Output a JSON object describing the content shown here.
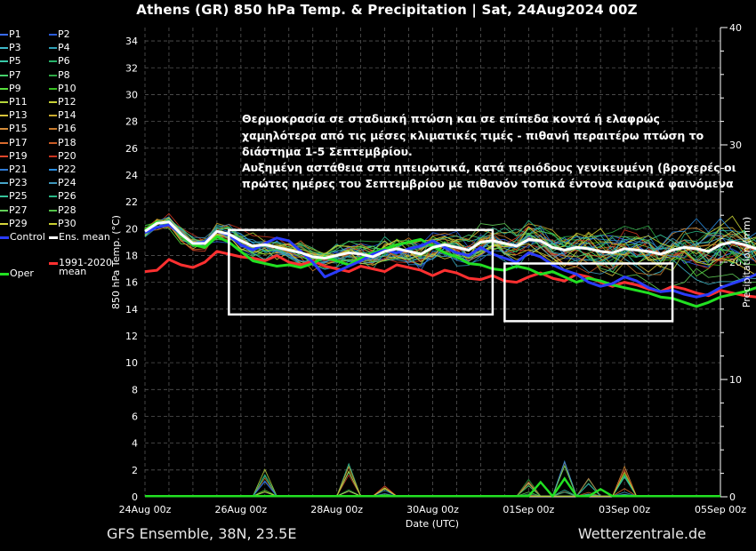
{
  "title": "Athens  (GR)  850 hPa Temp. & Precipitation | Sat, 24Aug2024 00Z",
  "footer": {
    "left": "GFS Ensemble, 38N, 23.5E",
    "right": "Wetterzentrale.de"
  },
  "legend": {
    "members": [
      "P1",
      "P2",
      "P3",
      "P4",
      "P5",
      "P6",
      "P7",
      "P8",
      "P9",
      "P10",
      "P11",
      "P12",
      "P13",
      "P14",
      "P15",
      "P16",
      "P17",
      "P18",
      "P19",
      "P20",
      "P21",
      "P22",
      "P23",
      "P24",
      "P25",
      "P26",
      "P27",
      "P28",
      "P29",
      "P30"
    ],
    "member_colors": [
      "#3a6cff",
      "#2a5bd8",
      "#3fb9c9",
      "#2fa0b6",
      "#38c9a8",
      "#27b36a",
      "#46d36b",
      "#2ea845",
      "#58e03c",
      "#37c021",
      "#b4d63b",
      "#c8d236",
      "#d9c43a",
      "#c9aa2d",
      "#d58d3a",
      "#c87a2c",
      "#d96b2e",
      "#c85a25",
      "#e0472b",
      "#c93520",
      "#2f7bd6",
      "#2a8de0",
      "#48a6c9",
      "#3e96bb",
      "#36c49a",
      "#2ab886",
      "#62cf58",
      "#52c148",
      "#d8d63c",
      "#c9cf30"
    ],
    "control_label": "Control",
    "ens_mean_label": "Ens. mean",
    "oper_label": "Oper",
    "climate_label_1": "1991-2020",
    "climate_label_2": "mean",
    "colors": {
      "control": "#2a3cff",
      "ens_mean": "#ffffff",
      "oper": "#22e022",
      "climate": "#ff3030"
    }
  },
  "annotation": {
    "lines": [
      "Θερμοκρασία σε σταδιακή πτώση και σε επίπεδα κοντά ή ελαφρώς",
      "χαμηλότερα από τις μέσες κλιματικές τιμές - πιθανή περαιτέρω πτώση το",
      "διάστημα 1-5 Σεπτεμβρίου.",
      "Αυξημένη αστάθεια στα ηπειρωτικά, κατά περιόδους γενικευμένη (βροχερές οι",
      "πρώτες ημέρες του Σεπτεμβρίου με πιθανόν τοπικά έντονα καιρικά φαινόμενα"
    ]
  },
  "chart_data": {
    "type": "line",
    "title": "Athens  (GR)  850 hPa Temp. & Precipitation | Sat, 24Aug2024 00Z",
    "xlabel": "Date (UTC)",
    "ylabel": "850 hPa Temp. (°C)",
    "y2label": "Precipitation (mm)",
    "ylim": [
      0,
      35
    ],
    "y2lim": [
      0,
      40
    ],
    "xlim_hours": [
      0,
      288
    ],
    "x_tick_labels": [
      "24Aug 00z",
      "26Aug 00z",
      "28Aug 00z",
      "30Aug 00z",
      "01Sep 00z",
      "03Sep 00z",
      "05Sep 00z"
    ],
    "y_ticks": [
      0,
      2,
      4,
      6,
      8,
      10,
      12,
      14,
      16,
      18,
      20,
      22,
      24,
      26,
      28,
      30,
      32,
      34
    ],
    "y2_ticks": [
      0,
      10,
      20,
      30,
      40
    ],
    "grid": true,
    "legend_position": "left-outside",
    "step_hours": 6,
    "series": [
      {
        "name": "Ens. mean",
        "role": "ens_mean",
        "values": [
          19.8,
          20.4,
          20.5,
          19.6,
          18.9,
          18.9,
          19.8,
          19.6,
          19.1,
          18.7,
          18.8,
          18.6,
          18.4,
          18.2,
          17.9,
          17.8,
          18.0,
          18.2,
          18.1,
          17.9,
          18.3,
          18.5,
          18.3,
          18.1,
          18.6,
          18.8,
          18.6,
          18.4,
          19.0,
          19.1,
          18.9,
          18.7,
          19.2,
          19.1,
          18.6,
          18.4,
          18.6,
          18.5,
          18.3,
          18.2,
          18.5,
          18.4,
          18.3,
          18.1,
          18.4,
          18.6,
          18.5,
          18.3,
          18.8,
          19.0,
          18.8,
          18.5,
          19.1,
          19.2,
          19.0,
          18.7,
          18.9,
          19.0,
          18.8,
          18.6,
          18.9,
          19.0,
          18.9,
          18.7,
          19.0,
          19.1,
          18.9,
          18.8,
          19.0
        ]
      },
      {
        "name": "Control",
        "role": "control",
        "values": [
          19.7,
          20.1,
          20.3,
          19.6,
          18.9,
          19.0,
          19.8,
          19.5,
          18.8,
          18.4,
          18.9,
          19.3,
          19.1,
          18.3,
          17.5,
          16.4,
          16.8,
          17.2,
          17.6,
          18.1,
          18.4,
          18.2,
          18.5,
          18.7,
          19.1,
          18.6,
          18.2,
          18.0,
          18.6,
          18.1,
          17.8,
          17.5,
          18.2,
          17.9,
          17.3,
          16.9,
          16.6,
          16.0,
          15.7,
          15.9,
          16.4,
          16.1,
          15.6,
          15.3,
          15.4,
          15.1,
          14.9,
          15.1,
          15.6,
          15.9,
          16.2,
          16.6,
          17.1,
          17.3,
          17.9,
          18.4,
          19.1,
          19.6,
          19.2,
          19.0,
          19.3,
          19.8,
          19.6,
          19.5,
          19.1,
          19.4,
          19.2,
          18.9,
          19.0
        ]
      },
      {
        "name": "Oper",
        "role": "oper",
        "values": [
          19.9,
          20.5,
          20.4,
          19.5,
          18.8,
          18.6,
          19.4,
          19.0,
          18.3,
          17.6,
          17.4,
          17.2,
          17.3,
          17.1,
          17.4,
          17.9,
          17.6,
          17.3,
          17.8,
          18.2,
          18.5,
          18.8,
          19.0,
          19.2,
          18.7,
          18.2,
          17.9,
          17.4,
          17.3,
          17.0,
          16.9,
          17.2,
          17.0,
          16.6,
          16.8,
          16.4,
          16.0,
          16.3,
          16.1,
          15.8,
          15.6,
          15.4,
          15.2,
          14.9,
          14.8,
          14.5,
          14.2,
          14.5,
          14.9,
          15.1,
          15.3,
          15.6,
          16.2,
          16.5,
          16.9,
          17.2,
          17.8,
          18.2,
          18.7,
          18.3,
          17.9,
          17.6,
          17.8,
          17.4,
          17.6,
          17.9,
          17.5,
          17.3,
          17.6
        ]
      },
      {
        "name": "1991-2020 mean",
        "role": "climate",
        "values": [
          16.8,
          16.9,
          17.7,
          17.3,
          17.1,
          17.5,
          18.3,
          18.1,
          17.9,
          17.8,
          17.6,
          18.0,
          17.5,
          17.3,
          17.6,
          17.2,
          17.0,
          16.8,
          17.2,
          17.0,
          16.8,
          17.3,
          17.1,
          16.9,
          16.5,
          16.9,
          16.7,
          16.3,
          16.2,
          16.5,
          16.1,
          16.0,
          16.4,
          16.7,
          16.3,
          16.1,
          16.6,
          16.4,
          16.0,
          15.7,
          16.0,
          15.8,
          15.5,
          15.3,
          15.7,
          15.5,
          15.2,
          15.0,
          15.4,
          15.2,
          15.0,
          14.9,
          15.3,
          15.6,
          15.4,
          15.2,
          15.6,
          15.9,
          15.7,
          15.5,
          15.2,
          15.6,
          15.4,
          15.0,
          15.3,
          15.1,
          14.8,
          14.6,
          14.9
        ]
      }
    ],
    "precipitation": {
      "axis": "right",
      "peaks": [
        {
          "x_hours": 60,
          "value_mm": 2.5
        },
        {
          "x_hours": 102,
          "value_mm": 3.0
        },
        {
          "x_hours": 120,
          "value_mm": 1.0
        },
        {
          "x_hours": 192,
          "value_mm": 1.5
        },
        {
          "x_hours": 210,
          "value_mm": 3.0
        },
        {
          "x_hours": 222,
          "value_mm": 2.0
        },
        {
          "x_hours": 240,
          "value_mm": 3.0
        }
      ],
      "oper_peaks": [
        {
          "x_hours": 198,
          "value_mm": 1.2
        },
        {
          "x_hours": 210,
          "value_mm": 1.5
        },
        {
          "x_hours": 228,
          "value_mm": 0.6
        }
      ]
    },
    "highlight_boxes": [
      {
        "x_hours_start": 42,
        "x_hours_end": 174,
        "y_top": 19.9,
        "y_bottom": 13.6
      },
      {
        "x_hours_start": 180,
        "x_hours_end": 264,
        "y_top": 17.4,
        "y_bottom": 13.1
      }
    ]
  }
}
